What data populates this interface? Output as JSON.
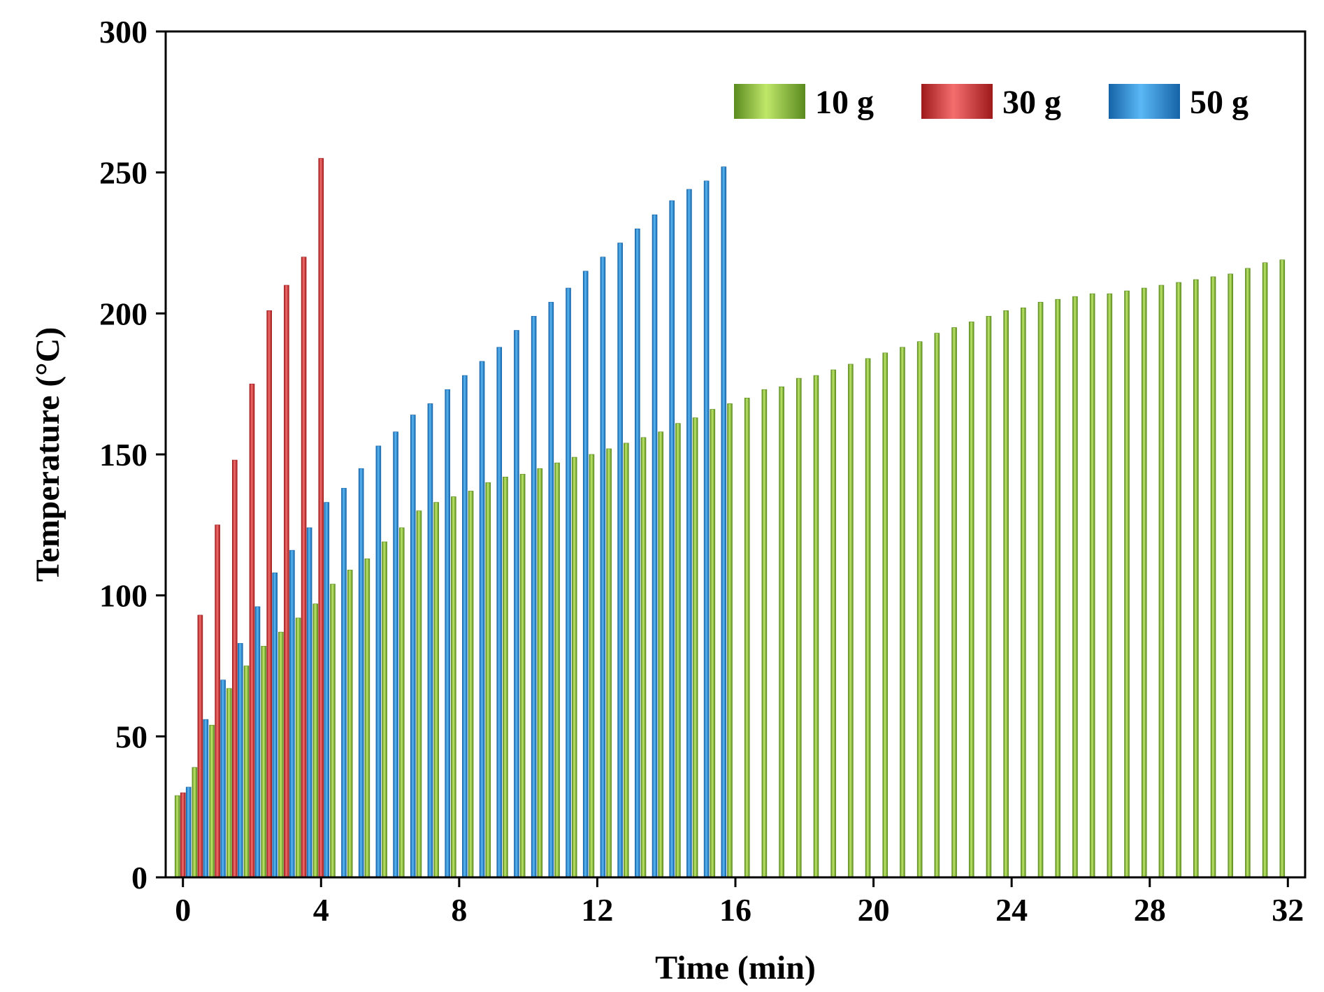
{
  "chart_data": {
    "type": "bar",
    "xlabel": "Time (min)",
    "ylabel": "Temperature (°C)",
    "xlim": [
      -0.5,
      32.5
    ],
    "ylim": [
      0,
      300
    ],
    "xticks": [
      0,
      4,
      8,
      12,
      16,
      20,
      24,
      28,
      32
    ],
    "yticks": [
      0,
      50,
      100,
      150,
      200,
      250,
      300
    ],
    "legend_position": "top-right",
    "series": [
      {
        "name": "10 g",
        "colors": {
          "dark": "#5a8a1e",
          "light": "#bfe86a"
        },
        "x": [
          0,
          0.5,
          1,
          1.5,
          2,
          2.5,
          3,
          3.5,
          4,
          4.5,
          5,
          5.5,
          6,
          6.5,
          7,
          7.5,
          8,
          8.5,
          9,
          9.5,
          10,
          10.5,
          11,
          11.5,
          12,
          12.5,
          13,
          13.5,
          14,
          14.5,
          15,
          15.5,
          16,
          16.5,
          17,
          17.5,
          18,
          18.5,
          19,
          19.5,
          20,
          20.5,
          21,
          21.5,
          22,
          22.5,
          23,
          23.5,
          24,
          24.5,
          25,
          25.5,
          26,
          26.5,
          27,
          27.5,
          28,
          28.5,
          29,
          29.5,
          30,
          30.5,
          31,
          31.5,
          32
        ],
        "values": [
          29,
          39,
          54,
          67,
          75,
          82,
          87,
          92,
          97,
          104,
          109,
          113,
          119,
          124,
          130,
          133,
          135,
          137,
          140,
          142,
          143,
          145,
          147,
          149,
          150,
          152,
          154,
          156,
          158,
          161,
          163,
          166,
          168,
          170,
          173,
          174,
          177,
          178,
          180,
          182,
          184,
          186,
          188,
          190,
          193,
          195,
          197,
          199,
          201,
          202,
          204,
          205,
          206,
          207,
          207,
          208,
          209,
          210,
          211,
          212,
          213,
          214,
          216,
          218,
          219
        ]
      },
      {
        "name": "30 g",
        "colors": {
          "dark": "#9e1a1a",
          "light": "#f46e6e"
        },
        "x": [
          0,
          0.5,
          1,
          1.5,
          2,
          2.5,
          3,
          3.5,
          4
        ],
        "values": [
          30,
          93,
          125,
          148,
          175,
          201,
          210,
          220,
          255
        ]
      },
      {
        "name": "50 g",
        "colors": {
          "dark": "#1563a8",
          "light": "#5ab8f4"
        },
        "x": [
          0,
          0.5,
          1,
          1.5,
          2,
          2.5,
          3,
          3.5,
          4,
          4.5,
          5,
          5.5,
          6,
          6.5,
          7,
          7.5,
          8,
          8.5,
          9,
          9.5,
          10,
          10.5,
          11,
          11.5,
          12,
          12.5,
          13,
          13.5,
          14,
          14.5,
          15,
          15.5
        ],
        "values": [
          32,
          56,
          70,
          83,
          96,
          108,
          116,
          124,
          133,
          138,
          145,
          153,
          158,
          164,
          168,
          173,
          178,
          183,
          188,
          194,
          199,
          204,
          209,
          215,
          220,
          225,
          230,
          235,
          240,
          244,
          247,
          252
        ]
      }
    ]
  }
}
